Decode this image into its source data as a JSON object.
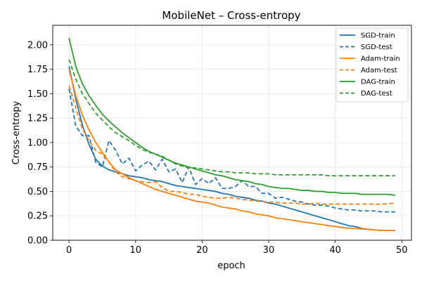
{
  "chart_data": {
    "type": "line",
    "title": "MobileNet – Cross-entropy",
    "xlabel": "epoch",
    "ylabel": "Cross-entropy",
    "xlim": [
      -2.45,
      51.45
    ],
    "ylim": [
      0.0,
      2.2
    ],
    "xticks": [
      0,
      10,
      20,
      30,
      40,
      50
    ],
    "yticks": [
      0.0,
      0.25,
      0.5,
      0.75,
      1.0,
      1.25,
      1.5,
      1.75,
      2.0
    ],
    "ytick_labels": [
      "0.00",
      "0.25",
      "0.50",
      "0.75",
      "1.00",
      "1.25",
      "1.50",
      "1.75",
      "2.00"
    ],
    "grid": true,
    "legend_position": "top-right",
    "x": [
      0,
      1,
      2,
      3,
      4,
      5,
      6,
      7,
      8,
      9,
      10,
      11,
      12,
      13,
      14,
      15,
      16,
      17,
      18,
      19,
      20,
      21,
      22,
      23,
      24,
      25,
      26,
      27,
      28,
      29,
      30,
      31,
      32,
      33,
      34,
      35,
      36,
      37,
      38,
      39,
      40,
      41,
      42,
      43,
      44,
      45,
      46,
      47,
      48,
      49
    ],
    "series": [
      {
        "name": "SGD-train",
        "color": "#1f77b4",
        "dash": "solid",
        "values": [
          1.78,
          1.45,
          1.18,
          0.98,
          0.83,
          0.76,
          0.72,
          0.7,
          0.68,
          0.66,
          0.65,
          0.64,
          0.62,
          0.61,
          0.6,
          0.58,
          0.56,
          0.55,
          0.54,
          0.53,
          0.52,
          0.51,
          0.5,
          0.48,
          0.47,
          0.45,
          0.44,
          0.43,
          0.41,
          0.4,
          0.38,
          0.37,
          0.35,
          0.33,
          0.31,
          0.29,
          0.27,
          0.25,
          0.23,
          0.21,
          0.19,
          0.17,
          0.15,
          0.14,
          0.12,
          0.11,
          0.105,
          0.1,
          0.1,
          0.1
        ]
      },
      {
        "name": "SGD-test",
        "color": "#1f77b4",
        "dash": "dashed",
        "values": [
          1.55,
          1.17,
          1.07,
          1.07,
          0.8,
          0.75,
          1.02,
          0.92,
          0.78,
          0.84,
          0.71,
          0.77,
          0.81,
          0.72,
          0.83,
          0.7,
          0.73,
          0.59,
          0.75,
          0.57,
          0.63,
          0.58,
          0.64,
          0.53,
          0.53,
          0.55,
          0.61,
          0.55,
          0.55,
          0.48,
          0.48,
          0.43,
          0.44,
          0.42,
          0.4,
          0.39,
          0.37,
          0.36,
          0.36,
          0.35,
          0.33,
          0.32,
          0.31,
          0.31,
          0.3,
          0.3,
          0.3,
          0.29,
          0.29,
          0.29
        ]
      },
      {
        "name": "Adam-train",
        "color": "#ff7f0e",
        "dash": "solid",
        "values": [
          1.75,
          1.48,
          1.28,
          1.13,
          1.0,
          0.9,
          0.8,
          0.72,
          0.68,
          0.64,
          0.61,
          0.58,
          0.55,
          0.52,
          0.5,
          0.48,
          0.46,
          0.44,
          0.42,
          0.4,
          0.39,
          0.38,
          0.36,
          0.34,
          0.33,
          0.32,
          0.3,
          0.29,
          0.27,
          0.26,
          0.25,
          0.23,
          0.22,
          0.21,
          0.2,
          0.19,
          0.18,
          0.17,
          0.16,
          0.15,
          0.14,
          0.13,
          0.125,
          0.12,
          0.115,
          0.11,
          0.105,
          0.1,
          0.1,
          0.1
        ]
      },
      {
        "name": "Adam-test",
        "color": "#ff7f0e",
        "dash": "dashed",
        "values": [
          1.58,
          1.36,
          1.14,
          1.02,
          0.92,
          0.88,
          0.8,
          0.7,
          0.65,
          0.63,
          0.61,
          0.6,
          0.59,
          0.6,
          0.54,
          0.5,
          0.5,
          0.49,
          0.47,
          0.47,
          0.45,
          0.44,
          0.43,
          0.43,
          0.44,
          0.43,
          0.42,
          0.41,
          0.4,
          0.4,
          0.39,
          0.39,
          0.38,
          0.38,
          0.38,
          0.37,
          0.37,
          0.38,
          0.37,
          0.37,
          0.37,
          0.37,
          0.37,
          0.37,
          0.37,
          0.37,
          0.37,
          0.37,
          0.375,
          0.38
        ]
      },
      {
        "name": "DAG-train",
        "color": "#2ca02c",
        "dash": "solid",
        "values": [
          2.07,
          1.78,
          1.6,
          1.48,
          1.38,
          1.29,
          1.22,
          1.16,
          1.1,
          1.05,
          1.0,
          0.95,
          0.91,
          0.88,
          0.85,
          0.82,
          0.79,
          0.77,
          0.75,
          0.73,
          0.71,
          0.69,
          0.67,
          0.66,
          0.64,
          0.62,
          0.61,
          0.6,
          0.58,
          0.57,
          0.55,
          0.54,
          0.53,
          0.53,
          0.52,
          0.51,
          0.51,
          0.5,
          0.5,
          0.49,
          0.49,
          0.48,
          0.48,
          0.48,
          0.47,
          0.47,
          0.47,
          0.47,
          0.47,
          0.46
        ]
      },
      {
        "name": "DAG-test",
        "color": "#2ca02c",
        "dash": "dashed",
        "values": [
          1.85,
          1.65,
          1.5,
          1.4,
          1.3,
          1.23,
          1.16,
          1.1,
          1.06,
          1.02,
          0.97,
          0.93,
          0.9,
          0.88,
          0.86,
          0.82,
          0.78,
          0.76,
          0.74,
          0.74,
          0.73,
          0.72,
          0.71,
          0.7,
          0.7,
          0.69,
          0.69,
          0.69,
          0.68,
          0.68,
          0.68,
          0.67,
          0.67,
          0.67,
          0.67,
          0.67,
          0.67,
          0.67,
          0.67,
          0.66,
          0.66,
          0.66,
          0.66,
          0.66,
          0.66,
          0.66,
          0.66,
          0.66,
          0.66,
          0.66
        ]
      }
    ]
  }
}
